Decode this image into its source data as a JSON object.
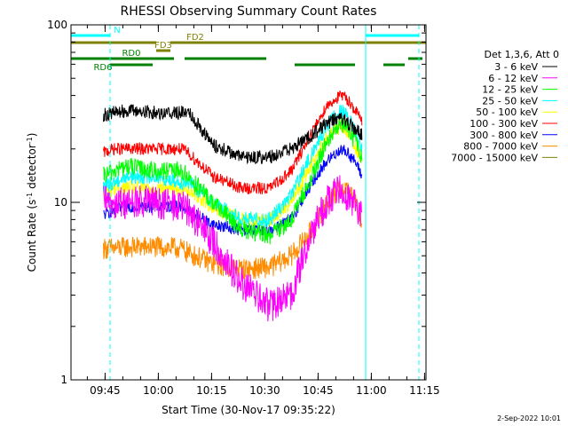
{
  "chart_data": {
    "type": "line",
    "title": "RHESSI Observing Summary Count Rates",
    "xlabel": "Start Time (30-Nov-17 09:35:22)",
    "ylabel": "Count Rate (s^-1 detector^-1)",
    "ylabel_main": "Count Rate (s",
    "ylabel_sup": "-1",
    "ylabel_mid": " detector",
    "ylabel_end": ")",
    "yscale": "log",
    "ylim": [
      1,
      100
    ],
    "xlim_minutes": [
      0,
      100
    ],
    "y_tick_labels": [
      "1",
      "10",
      "100"
    ],
    "x_tick_labels": [
      "09:45",
      "10:00",
      "10:15",
      "10:30",
      "10:45",
      "11:00",
      "11:15"
    ],
    "x_tick_minutes": [
      9.6,
      24.6,
      39.6,
      54.6,
      69.6,
      84.6,
      99.6
    ],
    "grid": false,
    "legend_title": "Det 1,3,6, Att 0",
    "legend_position": "right",
    "x_minutes": [
      0,
      9,
      12,
      16,
      24,
      31,
      33,
      40,
      48,
      56,
      62,
      68,
      72,
      76,
      78,
      80,
      82
    ],
    "series": [
      {
        "name": "3 - 6 keV",
        "color": "#000000",
        "values": [
          null,
          31,
          32,
          33,
          32,
          32,
          33,
          21,
          18,
          18,
          20,
          24,
          28,
          30,
          28,
          26,
          24
        ],
        "noise": 0.09
      },
      {
        "name": "6 - 12 keV",
        "color": "#ff00ff",
        "values": [
          null,
          10,
          10,
          10,
          10,
          9.5,
          9,
          6,
          3.5,
          2.6,
          3,
          7,
          10,
          12,
          11,
          10,
          8
        ],
        "noise": 0.22
      },
      {
        "name": "12 - 25 keV",
        "color": "#00ff00",
        "values": [
          null,
          14,
          15,
          16,
          15,
          15,
          14,
          10,
          7,
          6.5,
          8,
          14,
          22,
          28,
          26,
          22,
          18
        ],
        "noise": 0.12
      },
      {
        "name": "25 - 50 keV",
        "color": "#00ffff",
        "values": [
          null,
          12,
          13,
          14,
          14,
          13,
          13,
          10,
          8,
          8,
          11,
          19,
          27,
          33,
          30,
          25,
          20
        ],
        "noise": 0.1
      },
      {
        "name": "50 - 100 keV",
        "color": "#ffff00",
        "values": [
          null,
          11,
          12,
          12,
          12,
          12,
          12,
          9.5,
          8,
          8,
          10,
          17,
          23,
          27,
          25,
          21,
          17
        ],
        "noise": 0.1
      },
      {
        "name": "100 - 300 keV",
        "color": "#ff0000",
        "values": [
          null,
          19,
          20,
          20,
          20,
          20,
          19,
          14,
          12,
          12,
          15,
          25,
          35,
          40,
          38,
          33,
          29
        ],
        "noise": 0.08
      },
      {
        "name": "300 - 800 keV",
        "color": "#0000ff",
        "values": [
          null,
          8.5,
          9,
          9.5,
          9.5,
          9.5,
          9,
          7.5,
          7,
          7,
          8,
          13,
          17,
          20,
          19,
          17,
          14
        ],
        "noise": 0.08
      },
      {
        "name": "800 - 7000 keV",
        "color": "#ff8c00",
        "values": [
          null,
          5.5,
          5.5,
          5.6,
          5.6,
          5.5,
          5.2,
          4.5,
          4.2,
          4.3,
          5,
          7,
          10,
          12,
          12,
          10,
          8
        ],
        "noise": 0.14
      },
      {
        "name": "7000 - 15000 keV",
        "color": "#808000",
        "values": [],
        "noise": 0
      }
    ],
    "flags": [
      {
        "label": "N",
        "color": "#00ffff",
        "intervals": [
          [
            0,
            11
          ],
          [
            83,
            98
          ]
        ]
      },
      {
        "label": "FD2",
        "color": "#808000",
        "intervals": [
          [
            0,
            24
          ],
          [
            28,
            100
          ]
        ]
      },
      {
        "label": "FD3",
        "color": "#808000",
        "intervals": [
          [
            24,
            28
          ]
        ]
      },
      {
        "label": "RD0",
        "color": "#008000",
        "intervals": [
          [
            0,
            29
          ],
          [
            32,
            55
          ],
          [
            95,
            99
          ]
        ]
      },
      {
        "label": "RD6",
        "color": "#008000",
        "intervals": [
          [
            11,
            23
          ],
          [
            63,
            80
          ],
          [
            88,
            94
          ]
        ]
      }
    ],
    "vlines": [
      {
        "x": 0,
        "color": "#00ffff",
        "style": "solid"
      },
      {
        "x": 11,
        "color": "#00ffff",
        "style": "dashed"
      },
      {
        "x": 83,
        "color": "#00ffff",
        "style": "solid"
      },
      {
        "x": 98,
        "color": "#00ffff",
        "style": "dashed"
      }
    ]
  },
  "footer": {
    "date_stamp": "2-Sep-2022 10:01"
  }
}
